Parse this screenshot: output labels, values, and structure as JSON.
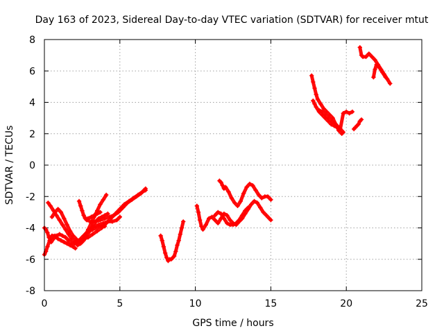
{
  "chart_data": {
    "type": "scatter",
    "title": "Day 163 of 2023, Sidereal Day-to-day VTEC variation (SDTVAR) for receiver mtut",
    "xlabel": "GPS time / hours",
    "ylabel": "SDTVAR / TECUs",
    "xlim": [
      0,
      25
    ],
    "ylim": [
      -8,
      8
    ],
    "x_ticks": [
      0,
      5,
      10,
      15,
      20,
      25
    ],
    "y_ticks": [
      -8,
      -6,
      -4,
      -2,
      0,
      2,
      4,
      6,
      8
    ],
    "x_tick_labels": [
      "0",
      "5",
      "10",
      "15",
      "20",
      "25"
    ],
    "y_tick_labels": [
      "-8",
      "-6",
      "-4",
      "-2",
      "0",
      "2",
      "4",
      "6",
      "8"
    ],
    "grid": true,
    "marker": "plus",
    "color": "#ff0000",
    "series": [
      {
        "values": [
          {
            "x": [
              0.0,
              0.1,
              0.2,
              0.35,
              0.5,
              0.7,
              0.9,
              1.1,
              1.3,
              1.5,
              1.7,
              1.9,
              2.05
            ],
            "y": [
              -5.7,
              -5.5,
              -5.2,
              -4.8,
              -4.5,
              -4.5,
              -4.7,
              -4.8,
              -4.9,
              -5.0,
              -5.1,
              -5.2,
              -5.3
            ]
          },
          {
            "x": [
              0.0,
              0.1,
              0.2,
              0.3,
              0.45,
              0.6,
              0.8,
              1.0,
              1.2,
              1.4,
              1.6,
              1.8,
              2.0,
              2.2,
              2.4,
              2.6,
              2.8,
              3.0,
              3.2,
              3.4,
              3.6,
              3.8,
              4.0
            ],
            "y": [
              -4.0,
              -4.1,
              -4.3,
              -4.6,
              -4.9,
              -4.7,
              -4.5,
              -4.4,
              -4.5,
              -4.6,
              -4.8,
              -5.0,
              -5.0,
              -4.9,
              -4.7,
              -4.5,
              -4.3,
              -4.2,
              -4.1,
              -4.0,
              -3.9,
              -3.9,
              -3.9
            ]
          },
          {
            "x": [
              0.25,
              0.4,
              0.6,
              0.8,
              1.0,
              1.2,
              1.4,
              1.6,
              1.8,
              2.0,
              2.2,
              2.4,
              2.6,
              2.8,
              3.0,
              3.2,
              3.4,
              3.6,
              3.8,
              4.0,
              4.2
            ],
            "y": [
              -2.4,
              -2.6,
              -2.9,
              -3.2,
              -3.5,
              -3.8,
              -4.1,
              -4.4,
              -4.7,
              -4.9,
              -5.1,
              -5.0,
              -4.8,
              -4.5,
              -4.2,
              -3.9,
              -3.6,
              -3.4,
              -3.3,
              -3.2,
              -3.1
            ]
          },
          {
            "x": [
              0.5,
              0.7,
              0.9,
              1.1,
              1.3,
              1.5,
              1.7,
              1.9,
              2.1,
              2.3,
              2.5,
              2.7,
              2.9,
              3.1,
              3.3,
              3.5,
              3.7,
              3.9,
              4.1
            ],
            "y": [
              -3.3,
              -3.0,
              -2.8,
              -3.0,
              -3.4,
              -3.8,
              -4.2,
              -4.5,
              -4.7,
              -4.9,
              -4.8,
              -4.5,
              -4.1,
              -3.7,
              -3.3,
              -2.9,
              -2.5,
              -2.2,
              -1.9
            ]
          },
          {
            "x": [
              2.3,
              2.4,
              2.5,
              2.6,
              2.7,
              2.9,
              3.1,
              3.3,
              3.5,
              3.7
            ],
            "y": [
              -2.3,
              -2.6,
              -2.9,
              -3.2,
              -3.4,
              -3.4,
              -3.3,
              -3.2,
              -3.1,
              -3.0
            ]
          },
          {
            "x": [
              2.0,
              2.3,
              2.6,
              2.9,
              3.2,
              3.5,
              3.8,
              4.1,
              4.4,
              4.7,
              5.0,
              5.3,
              5.6,
              5.9,
              6.2,
              6.5,
              6.7
            ],
            "y": [
              -4.9,
              -4.8,
              -4.7,
              -4.6,
              -4.4,
              -4.2,
              -4.0,
              -3.7,
              -3.4,
              -3.1,
              -2.8,
              -2.5,
              -2.3,
              -2.1,
              -1.9,
              -1.7,
              -1.6
            ]
          },
          {
            "x": [
              2.8,
              3.1,
              3.4,
              3.7,
              4.0,
              4.3,
              4.6,
              4.9,
              5.2,
              5.5,
              5.8,
              6.1,
              6.4,
              6.7
            ],
            "y": [
              -3.5,
              -3.6,
              -3.6,
              -3.5,
              -3.4,
              -3.3,
              -3.2,
              -3.0,
              -2.7,
              -2.4,
              -2.2,
              -2.0,
              -1.8,
              -1.5
            ]
          },
          {
            "x": [
              3.0,
              3.3,
              3.6,
              3.9,
              4.2,
              4.5,
              4.8,
              5.0
            ],
            "y": [
              -4.1,
              -3.9,
              -3.8,
              -3.7,
              -3.6,
              -3.6,
              -3.5,
              -3.3
            ]
          },
          {
            "x": [
              7.7,
              7.8,
              7.9,
              8.0,
              8.1,
              8.2,
              8.3,
              8.4,
              8.5,
              8.6,
              8.7,
              8.8,
              8.9,
              9.0,
              9.1,
              9.2
            ],
            "y": [
              -4.5,
              -4.8,
              -5.2,
              -5.6,
              -5.9,
              -6.1,
              -6.0,
              -6.0,
              -5.9,
              -5.8,
              -5.5,
              -5.1,
              -4.8,
              -4.4,
              -4.0,
              -3.6
            ]
          },
          {
            "x": [
              10.1,
              10.2,
              10.3,
              10.4,
              10.5,
              10.7,
              10.9,
              11.1,
              11.3,
              11.5,
              11.7,
              11.9,
              12.1,
              12.3,
              12.5,
              12.7,
              12.9,
              13.1,
              13.3,
              13.5,
              13.7,
              13.9,
              14.1,
              14.3,
              14.5,
              14.7,
              14.9,
              15.0
            ],
            "y": [
              -2.6,
              -3.0,
              -3.5,
              -3.9,
              -4.1,
              -3.8,
              -3.4,
              -3.3,
              -3.5,
              -3.7,
              -3.4,
              -3.1,
              -3.2,
              -3.5,
              -3.7,
              -3.8,
              -3.6,
              -3.4,
              -3.1,
              -2.8,
              -2.5,
              -2.3,
              -2.4,
              -2.7,
              -3.0,
              -3.2,
              -3.4,
              -3.5
            ]
          },
          {
            "x": [
              11.6,
              11.7,
              11.8,
              11.9,
              12.0,
              12.2,
              12.4,
              12.6,
              12.8,
              13.0,
              13.2,
              13.4,
              13.6,
              13.8,
              14.0,
              14.2,
              14.4,
              14.6,
              14.8,
              15.0
            ],
            "y": [
              -1.0,
              -1.1,
              -1.3,
              -1.5,
              -1.4,
              -1.7,
              -2.1,
              -2.4,
              -2.6,
              -2.3,
              -1.8,
              -1.4,
              -1.2,
              -1.3,
              -1.6,
              -1.9,
              -2.1,
              -2.0,
              -2.0,
              -2.2
            ]
          },
          {
            "x": [
              11.3,
              11.5,
              11.7,
              11.9,
              12.1,
              12.3,
              12.5,
              12.7,
              12.9,
              13.1,
              13.3,
              13.5
            ],
            "y": [
              -3.2,
              -3.0,
              -3.1,
              -3.4,
              -3.7,
              -3.8,
              -3.8,
              -3.7,
              -3.5,
              -3.2,
              -2.9,
              -2.7
            ]
          },
          {
            "x": [
              17.7,
              17.8,
              17.9,
              18.0,
              18.1,
              18.3,
              18.5,
              18.7,
              18.9,
              19.1,
              19.3,
              19.5,
              19.7
            ],
            "y": [
              5.7,
              5.3,
              4.9,
              4.5,
              4.2,
              3.9,
              3.6,
              3.4,
              3.2,
              3.0,
              2.6,
              2.2,
              2.0
            ]
          },
          {
            "x": [
              17.8,
              17.9,
              18.0,
              18.2,
              18.4,
              18.6,
              18.8,
              19.0,
              19.2,
              19.4,
              19.6,
              19.8,
              20.0,
              20.2,
              20.4
            ],
            "y": [
              4.1,
              3.9,
              3.7,
              3.4,
              3.2,
              3.0,
              2.8,
              2.6,
              2.5,
              2.4,
              2.3,
              3.3,
              3.4,
              3.3,
              3.4
            ]
          },
          {
            "x": [
              18.2,
              18.4,
              18.6,
              18.8,
              19.0,
              19.2,
              19.4,
              19.6,
              19.8
            ],
            "y": [
              3.5,
              3.4,
              3.2,
              3.0,
              2.8,
              2.7,
              2.5,
              2.3,
              2.1
            ]
          },
          {
            "x": [
              20.5,
              20.6,
              20.7,
              20.8,
              20.9,
              21.0
            ],
            "y": [
              2.3,
              2.4,
              2.5,
              2.6,
              2.8,
              2.9
            ]
          },
          {
            "x": [
              20.9,
              21.0,
              21.1,
              21.3,
              21.5,
              21.7,
              21.9,
              22.1,
              22.3,
              22.5,
              22.7,
              22.9
            ],
            "y": [
              7.5,
              7.0,
              6.9,
              6.9,
              7.1,
              6.9,
              6.7,
              6.4,
              6.1,
              5.8,
              5.5,
              5.2
            ]
          },
          {
            "x": [
              21.8,
              21.9,
              22.0,
              22.2,
              22.4,
              22.6
            ],
            "y": [
              5.6,
              6.1,
              6.4,
              6.2,
              5.9,
              5.6
            ]
          }
        ]
      }
    ]
  }
}
